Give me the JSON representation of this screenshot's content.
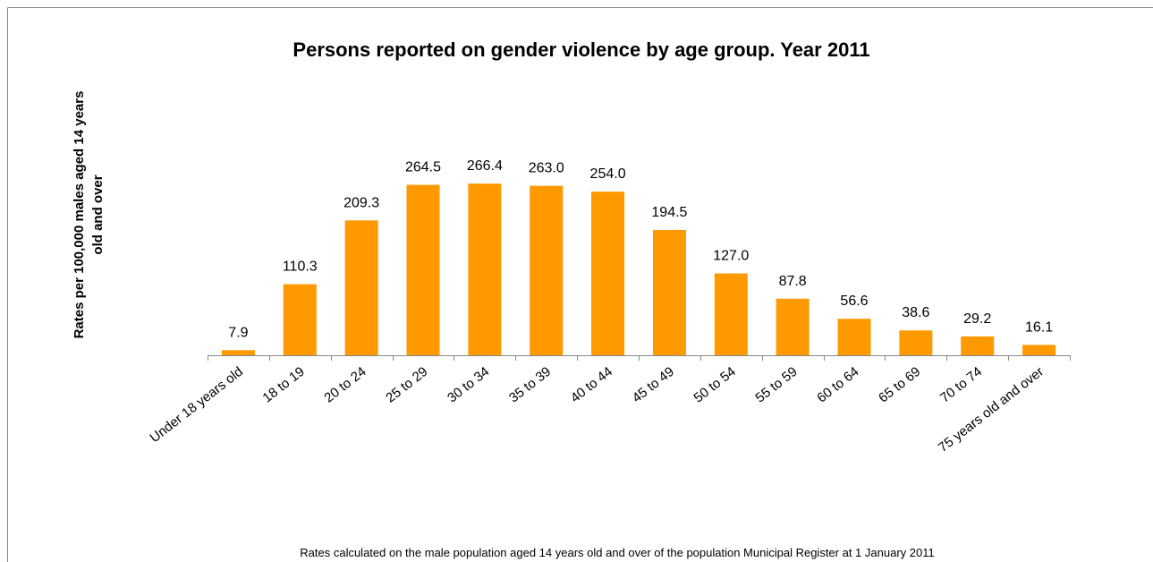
{
  "chart_data": {
    "type": "bar",
    "title": "Persons reported on gender violence by age group. Year 2011",
    "y_label_lines": [
      "Rates per 100,000 males aged 14 years",
      "old and over"
    ],
    "footnote": "Rates calculated on the male population aged 14 years old and over of the population Municipal Register at 1 January 2011",
    "categories": [
      "Under 18 years old",
      "18 to 19",
      "20 to 24",
      "25 to 29",
      "30 to 34",
      "35 to 39",
      "40 to 44",
      "45 to 49",
      "50 to 54",
      "55 to 59",
      "60 to 64",
      "65 to 69",
      "70 to 74",
      "75 years old and over"
    ],
    "values": [
      7.9,
      110.3,
      209.3,
      264.5,
      266.4,
      263.0,
      254.0,
      194.5,
      127.0,
      87.8,
      56.6,
      38.6,
      29.2,
      16.1
    ],
    "value_labels": [
      "7.9",
      "110.3",
      "209.3",
      "264.5",
      "266.4",
      "263.0",
      "254.0",
      "194.5",
      "127.0",
      "87.8",
      "56.6",
      "38.6",
      "29.2",
      "16.1"
    ],
    "color": "#ff9900",
    "ylim": [
      0,
      300
    ]
  }
}
